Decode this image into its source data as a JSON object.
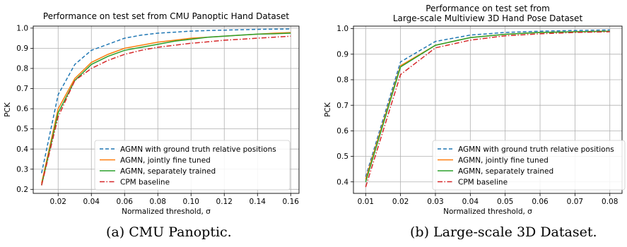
{
  "chart_data": [
    {
      "type": "line",
      "title": "Performance on test set from CMU Panoptic Hand Dataset",
      "xlabel": "Normalized threshold, σ",
      "ylabel": "PCK",
      "xlim": [
        0.005,
        0.165
      ],
      "ylim": [
        0.18,
        1.01
      ],
      "grid": true,
      "legend": "lower-right",
      "xticks": [
        0.02,
        0.04,
        0.06,
        0.08,
        0.1,
        0.12,
        0.14,
        0.16
      ],
      "xtick_labels": [
        "0.02",
        "0.04",
        "0.06",
        "0.08",
        "0.10",
        "0.12",
        "0.14",
        "0.16"
      ],
      "yticks": [
        0.2,
        0.3,
        0.4,
        0.5,
        0.6,
        0.7,
        0.8,
        0.9,
        1.0
      ],
      "ytick_labels": [
        "0.2",
        "0.3",
        "0.4",
        "0.5",
        "0.6",
        "0.7",
        "0.8",
        "0.9",
        "1.0"
      ],
      "x": [
        0.01,
        0.02,
        0.03,
        0.04,
        0.05,
        0.06,
        0.07,
        0.08,
        0.09,
        0.1,
        0.11,
        0.12,
        0.13,
        0.14,
        0.15,
        0.16
      ],
      "series": [
        {
          "name": "AGMN with ground truth relative positions",
          "color": "#1f77b4",
          "dash": "dashed",
          "values": [
            0.28,
            0.67,
            0.82,
            0.89,
            0.92,
            0.95,
            0.965,
            0.975,
            0.98,
            0.985,
            0.988,
            0.99,
            0.992,
            0.994,
            0.995,
            0.996
          ]
        },
        {
          "name": "AGMN, jointly fine tuned",
          "color": "#ff7f0e",
          "dash": "solid",
          "values": [
            0.23,
            0.6,
            0.75,
            0.83,
            0.87,
            0.9,
            0.915,
            0.93,
            0.94,
            0.95,
            0.955,
            0.96,
            0.965,
            0.97,
            0.975,
            0.978
          ]
        },
        {
          "name": "AGMN, separately trained",
          "color": "#2ca02c",
          "dash": "solid",
          "values": [
            0.22,
            0.58,
            0.74,
            0.82,
            0.86,
            0.89,
            0.905,
            0.92,
            0.935,
            0.945,
            0.955,
            0.96,
            0.965,
            0.97,
            0.972,
            0.975
          ]
        },
        {
          "name": "CPM baseline",
          "color": "#d62728",
          "dash": "dashdot",
          "values": [
            0.22,
            0.56,
            0.74,
            0.8,
            0.84,
            0.87,
            0.89,
            0.905,
            0.915,
            0.925,
            0.932,
            0.94,
            0.945,
            0.95,
            0.955,
            0.96
          ]
        }
      ]
    },
    {
      "type": "line",
      "title": "Performance on test set from\nLarge-scale Multiview 3D Hand Pose Dataset",
      "xlabel": "Normalized threshold, σ",
      "ylabel": "PCK",
      "xlim": [
        0.0065,
        0.0835
      ],
      "ylim": [
        0.355,
        1.01
      ],
      "grid": true,
      "legend": "lower-right",
      "xticks": [
        0.01,
        0.02,
        0.03,
        0.04,
        0.05,
        0.06,
        0.07,
        0.08
      ],
      "xtick_labels": [
        "0.01",
        "0.02",
        "0.03",
        "0.04",
        "0.05",
        "0.06",
        "0.07",
        "0.08"
      ],
      "yticks": [
        0.4,
        0.5,
        0.6,
        0.7,
        0.8,
        0.9,
        1.0
      ],
      "ytick_labels": [
        "0.4",
        "0.5",
        "0.6",
        "0.7",
        "0.8",
        "0.9",
        "1.0"
      ],
      "x": [
        0.01,
        0.02,
        0.03,
        0.04,
        0.05,
        0.06,
        0.07,
        0.08
      ],
      "series": [
        {
          "name": "AGMN with ground truth relative positions",
          "color": "#1f77b4",
          "dash": "dashed",
          "values": [
            0.42,
            0.87,
            0.95,
            0.975,
            0.985,
            0.99,
            0.993,
            0.995
          ]
        },
        {
          "name": "AGMN, jointly fine tuned",
          "color": "#ff7f0e",
          "dash": "solid",
          "values": [
            0.41,
            0.855,
            0.935,
            0.965,
            0.978,
            0.985,
            0.988,
            0.99
          ]
        },
        {
          "name": "AGMN, separately trained",
          "color": "#2ca02c",
          "dash": "solid",
          "values": [
            0.4,
            0.85,
            0.935,
            0.965,
            0.978,
            0.985,
            0.988,
            0.99
          ]
        },
        {
          "name": "CPM baseline",
          "color": "#d62728",
          "dash": "dashdot",
          "values": [
            0.38,
            0.82,
            0.925,
            0.955,
            0.972,
            0.98,
            0.985,
            0.988
          ]
        }
      ]
    }
  ],
  "captions": [
    "(a)  CMU Panoptic.",
    "(b)  Large-scale 3D Dataset."
  ]
}
